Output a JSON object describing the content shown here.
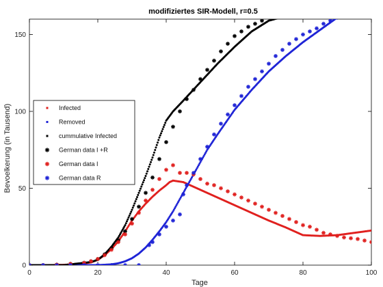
{
  "chart_data": {
    "type": "line",
    "title": "modifiziertes SIR-Modell, r=0.5",
    "xlabel": "Tage",
    "ylabel": "Bevoelkerung (in Tausend)",
    "xlim": [
      0,
      100
    ],
    "ylim": [
      0,
      160
    ],
    "xticks": [
      0,
      20,
      40,
      60,
      80,
      100
    ],
    "yticks": [
      0,
      50,
      100,
      150
    ],
    "grid": false,
    "legend_position": "left-middle",
    "series": [
      {
        "name": "Infected",
        "style": "model",
        "color": "#e0201e",
        "x": [
          0,
          5,
          10,
          15,
          18,
          20,
          22,
          24,
          26,
          28,
          30,
          32,
          34,
          36,
          38,
          40,
          41,
          42,
          45,
          50,
          55,
          60,
          65,
          70,
          75,
          78,
          80,
          85,
          90,
          95,
          100
        ],
        "y": [
          0,
          0,
          0.2,
          0.8,
          1.8,
          3.5,
          6.5,
          10.5,
          15.5,
          22,
          29,
          35,
          40,
          44.5,
          48.5,
          52,
          54,
          55,
          54,
          49,
          44,
          39,
          34,
          29,
          24.5,
          21.5,
          19.5,
          19,
          19.5,
          21,
          22.5
        ]
      },
      {
        "name": "Removed",
        "style": "model",
        "color": "#1f24d6",
        "x": [
          0,
          10,
          20,
          24,
          26,
          28,
          30,
          32,
          34,
          36,
          38,
          40,
          42,
          44,
          46,
          48,
          50,
          52,
          55,
          60,
          65,
          70,
          75,
          80,
          85,
          90,
          95,
          100
        ],
        "y": [
          0,
          0,
          0,
          0.5,
          1.2,
          2.5,
          4.5,
          7.5,
          11.5,
          16.5,
          22,
          28,
          35,
          43,
          51,
          59,
          67,
          75,
          85,
          101,
          114,
          126,
          136,
          145,
          153,
          161,
          168,
          175
        ]
      },
      {
        "name": "cummulative Infected",
        "style": "model",
        "color": "#000000",
        "x": [
          0,
          10,
          18,
          20,
          22,
          24,
          26,
          28,
          30,
          32,
          34,
          36,
          38,
          40,
          42,
          45,
          50,
          55,
          60,
          65,
          70,
          75,
          80
        ],
        "y": [
          0,
          0,
          2,
          3.5,
          7,
          12,
          18,
          26,
          36,
          47,
          58,
          70,
          83,
          94,
          100,
          107,
          119,
          131,
          142,
          152,
          159,
          162,
          166
        ]
      },
      {
        "name": "German data I +R",
        "style": "data",
        "color": "#000000",
        "x": [
          0,
          4,
          8,
          12,
          16,
          18,
          20,
          22,
          24,
          26,
          28,
          30,
          32,
          34,
          36,
          38,
          40,
          42,
          44,
          46,
          48,
          50,
          52,
          54,
          56,
          58,
          60,
          62,
          64,
          66,
          68
        ],
        "y": [
          0,
          0,
          0.3,
          0.8,
          1.5,
          2.5,
          4,
          7,
          11,
          16,
          22,
          30,
          38,
          47,
          57,
          69,
          80,
          90,
          100,
          108,
          114,
          121,
          127,
          133,
          139,
          144,
          149,
          152,
          155,
          157,
          159
        ]
      },
      {
        "name": "German data I",
        "style": "data",
        "color": "#e0201e",
        "x": [
          0,
          4,
          8,
          12,
          16,
          18,
          20,
          22,
          24,
          26,
          28,
          30,
          32,
          34,
          36,
          38,
          40,
          42,
          44,
          46,
          48,
          50,
          52,
          54,
          56,
          58,
          60,
          62,
          64,
          66,
          68,
          70,
          72,
          74,
          76,
          78,
          80,
          82,
          84,
          86,
          88,
          90,
          92,
          94,
          96,
          98,
          100
        ],
        "y": [
          0,
          0,
          0.3,
          0.8,
          1.5,
          2.5,
          4,
          6.5,
          10,
          15,
          20,
          27,
          34,
          42,
          49,
          56,
          62,
          65,
          60,
          60,
          59,
          56,
          53,
          52,
          50,
          48,
          46,
          44,
          42,
          40,
          38,
          36,
          34,
          32,
          30,
          28,
          26,
          25,
          23,
          21,
          20,
          19,
          18,
          17.5,
          17,
          16,
          15
        ]
      },
      {
        "name": "German data R",
        "style": "data",
        "color": "#1f24d6",
        "x": [
          0,
          4,
          8,
          12,
          16,
          20,
          24,
          28,
          32,
          35,
          36,
          38,
          40,
          42,
          44,
          45,
          46,
          48,
          50,
          52,
          54,
          56,
          58,
          60,
          62,
          64,
          66,
          68,
          70,
          72,
          74,
          76,
          78,
          80,
          82,
          84,
          86,
          88,
          90
        ],
        "y": [
          0,
          0,
          0,
          0,
          0,
          0,
          0,
          0,
          0,
          13,
          15,
          20,
          25,
          29,
          33,
          46,
          52,
          60,
          69,
          77,
          85,
          92,
          98,
          104,
          110,
          116,
          121,
          126,
          131,
          136,
          140,
          144,
          147,
          150,
          152,
          154,
          157,
          159,
          161
        ]
      }
    ]
  }
}
